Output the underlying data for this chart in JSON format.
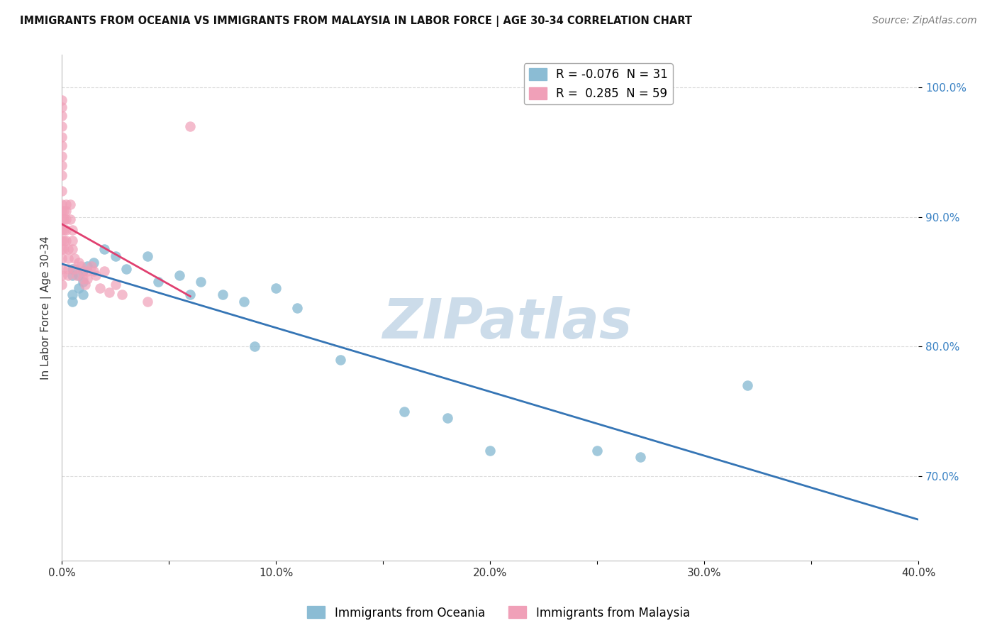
{
  "title": "IMMIGRANTS FROM OCEANIA VS IMMIGRANTS FROM MALAYSIA IN LABOR FORCE | AGE 30-34 CORRELATION CHART",
  "source": "Source: ZipAtlas.com",
  "ylabel": "In Labor Force | Age 30-34",
  "xlim": [
    0.0,
    0.4
  ],
  "ylim": [
    0.635,
    1.025
  ],
  "yticks": [
    0.7,
    0.8,
    0.9,
    1.0
  ],
  "ytick_labels": [
    "70.0%",
    "80.0%",
    "90.0%",
    "100.0%"
  ],
  "xticks": [
    0.0,
    0.05,
    0.1,
    0.15,
    0.2,
    0.25,
    0.3,
    0.35,
    0.4
  ],
  "xtick_labels": [
    "0.0%",
    "",
    "10.0%",
    "",
    "20.0%",
    "",
    "30.0%",
    "",
    "40.0%"
  ],
  "legend1_label": "R = -0.076  N = 31",
  "legend2_label": "R =  0.285  N = 59",
  "color_blue": "#8bbcd4",
  "color_pink": "#f0a0b8",
  "line_color_blue": "#3575b5",
  "line_color_pink": "#e04070",
  "watermark": "ZIPatlas",
  "watermark_color": "#ccdcea",
  "background_color": "#ffffff",
  "grid_color": "#dddddd",
  "oceania_x": [
    0.005,
    0.005,
    0.005,
    0.005,
    0.008,
    0.008,
    0.01,
    0.01,
    0.01,
    0.012,
    0.015,
    0.02,
    0.025,
    0.03,
    0.04,
    0.045,
    0.055,
    0.06,
    0.065,
    0.075,
    0.085,
    0.09,
    0.1,
    0.11,
    0.13,
    0.16,
    0.18,
    0.2,
    0.25,
    0.27,
    0.32
  ],
  "oceania_y": [
    0.855,
    0.86,
    0.84,
    0.835,
    0.855,
    0.845,
    0.858,
    0.85,
    0.84,
    0.862,
    0.865,
    0.875,
    0.87,
    0.86,
    0.87,
    0.85,
    0.855,
    0.84,
    0.85,
    0.84,
    0.835,
    0.8,
    0.845,
    0.83,
    0.79,
    0.75,
    0.745,
    0.72,
    0.72,
    0.715,
    0.77
  ],
  "malaysia_x": [
    0.0,
    0.0,
    0.0,
    0.0,
    0.0,
    0.0,
    0.0,
    0.0,
    0.0,
    0.0,
    0.0,
    0.0,
    0.0,
    0.0,
    0.0,
    0.0,
    0.0,
    0.0,
    0.0,
    0.0,
    0.001,
    0.001,
    0.001,
    0.001,
    0.001,
    0.002,
    0.002,
    0.002,
    0.002,
    0.002,
    0.003,
    0.003,
    0.003,
    0.003,
    0.004,
    0.004,
    0.005,
    0.005,
    0.005,
    0.006,
    0.006,
    0.007,
    0.008,
    0.009,
    0.01,
    0.01,
    0.011,
    0.012,
    0.012,
    0.014,
    0.015,
    0.016,
    0.018,
    0.02,
    0.022,
    0.025,
    0.028,
    0.04,
    0.06
  ],
  "malaysia_y": [
    0.99,
    0.985,
    0.978,
    0.97,
    0.962,
    0.955,
    0.947,
    0.94,
    0.932,
    0.92,
    0.91,
    0.905,
    0.898,
    0.89,
    0.882,
    0.875,
    0.868,
    0.86,
    0.855,
    0.848,
    0.905,
    0.898,
    0.89,
    0.882,
    0.875,
    0.91,
    0.905,
    0.898,
    0.89,
    0.882,
    0.875,
    0.868,
    0.86,
    0.855,
    0.91,
    0.898,
    0.89,
    0.882,
    0.875,
    0.868,
    0.86,
    0.855,
    0.865,
    0.862,
    0.858,
    0.852,
    0.848,
    0.858,
    0.852,
    0.862,
    0.858,
    0.855,
    0.845,
    0.858,
    0.842,
    0.848,
    0.84,
    0.835,
    0.97
  ]
}
